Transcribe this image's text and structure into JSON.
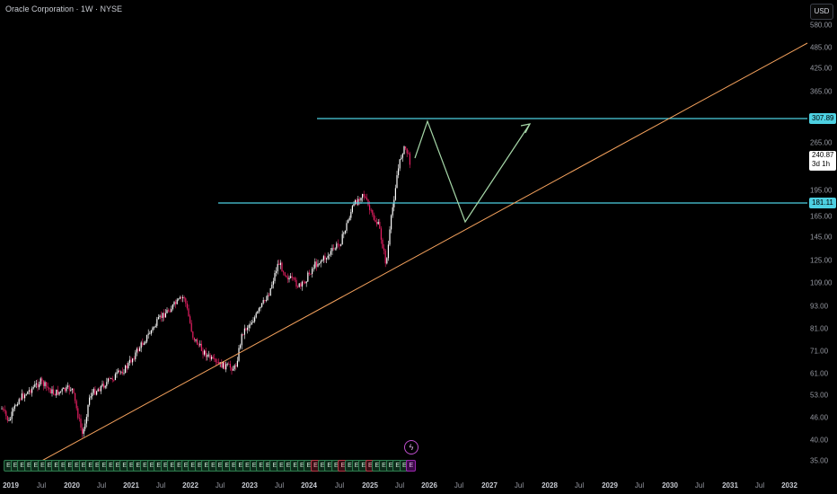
{
  "header": {
    "title": "Oracle Corporation · 1W · NYSE",
    "currency": "USD"
  },
  "price_axis": {
    "ticks": [
      "580.00",
      "485.00",
      "425.00",
      "365.00",
      "265.00",
      "195.00",
      "165.00",
      "145.00",
      "125.00",
      "109.00",
      "93.00",
      "81.00",
      "71.00",
      "61.00",
      "53.00",
      "46.00",
      "40.00",
      "35.00"
    ],
    "labels": {
      "resistance": "307.89",
      "current_price": "240.87",
      "countdown": "3d 1h",
      "support": "181.11"
    }
  },
  "time_axis": {
    "ticks": [
      {
        "label": "2019",
        "year": true
      },
      {
        "label": "Jul",
        "year": false
      },
      {
        "label": "2020",
        "year": true
      },
      {
        "label": "Jul",
        "year": false
      },
      {
        "label": "2021",
        "year": true
      },
      {
        "label": "Jul",
        "year": false
      },
      {
        "label": "2022",
        "year": true
      },
      {
        "label": "Jul",
        "year": false
      },
      {
        "label": "2023",
        "year": true
      },
      {
        "label": "Jul",
        "year": false
      },
      {
        "label": "2024",
        "year": true
      },
      {
        "label": "Jul",
        "year": false
      },
      {
        "label": "2025",
        "year": true
      },
      {
        "label": "Jul",
        "year": false
      },
      {
        "label": "2026",
        "year": true
      },
      {
        "label": "Jul",
        "year": false
      },
      {
        "label": "2027",
        "year": true
      },
      {
        "label": "Jul",
        "year": false
      },
      {
        "label": "2028",
        "year": true
      },
      {
        "label": "Jul",
        "year": false
      },
      {
        "label": "2029",
        "year": true
      },
      {
        "label": "Jul",
        "year": false
      },
      {
        "label": "2030",
        "year": true
      },
      {
        "label": "Jul",
        "year": false
      },
      {
        "label": "2031",
        "year": true
      },
      {
        "label": "Jul",
        "year": false
      },
      {
        "label": "2032",
        "year": true
      }
    ]
  },
  "events": {
    "glyph": "E",
    "colors": [
      "green",
      "green",
      "green",
      "green",
      "green",
      "green",
      "green",
      "green",
      "green",
      "green",
      "green",
      "green",
      "green",
      "green",
      "green",
      "green",
      "green",
      "green",
      "green",
      "green",
      "green",
      "green",
      "green",
      "green",
      "green",
      "green",
      "green",
      "green",
      "green",
      "green",
      "green",
      "green",
      "green",
      "green",
      "green",
      "green",
      "green",
      "green",
      "green",
      "green",
      "green",
      "green",
      "green",
      "green",
      "green",
      "red",
      "green",
      "green",
      "green",
      "red",
      "green",
      "green",
      "green",
      "red",
      "green",
      "green",
      "green",
      "green",
      "green",
      "purple"
    ],
    "lightning_glyph": "ϟ"
  },
  "colors": {
    "background": "#000000",
    "up_candle": "#ffffff",
    "down_candle": "#e91e63",
    "horizontal_lines": "#4dd0e1",
    "trendline": "#f5a25d",
    "projection": "#a5d6a7"
  }
}
